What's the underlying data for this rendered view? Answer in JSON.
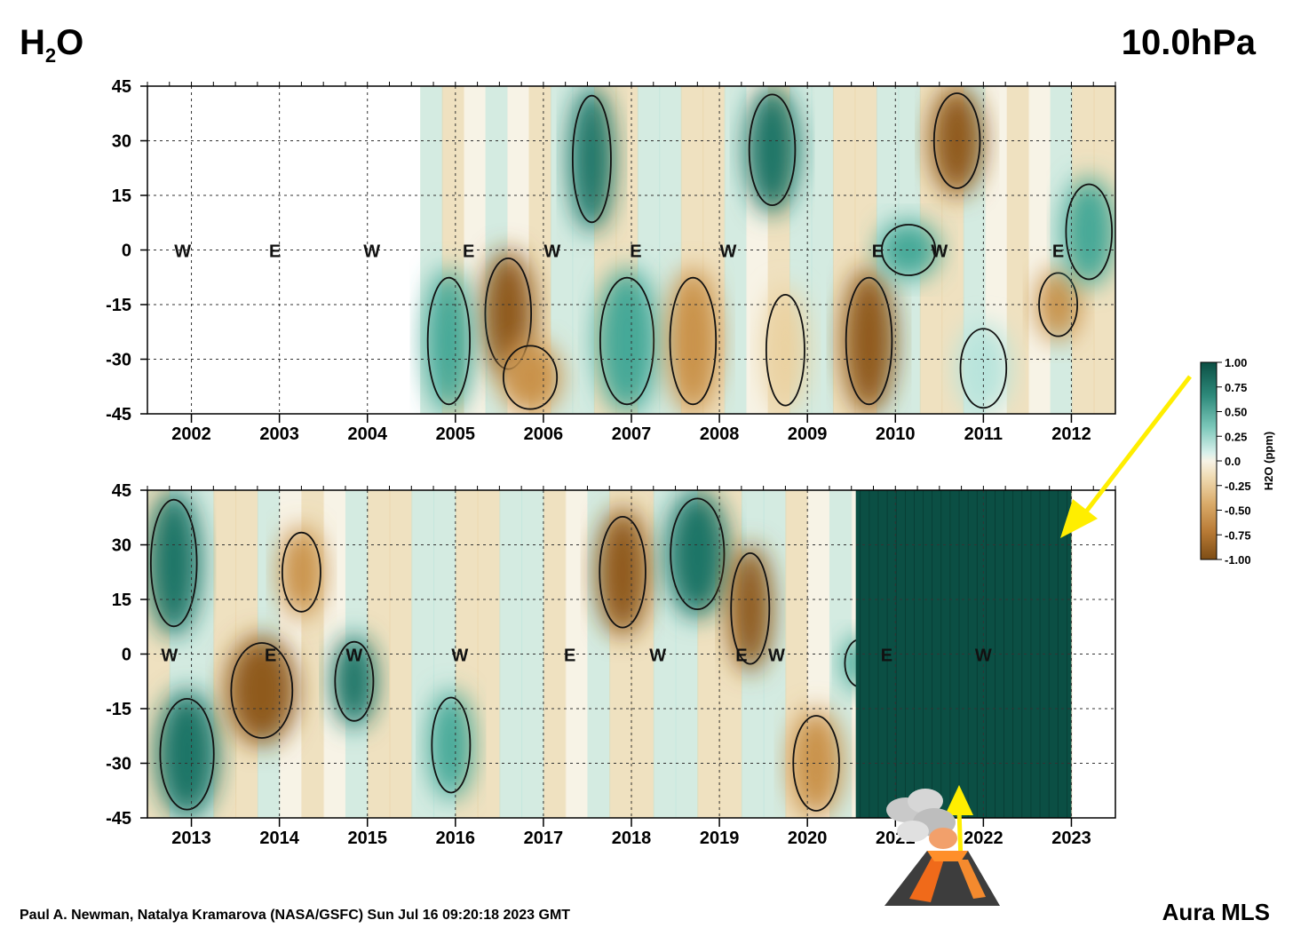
{
  "header": {
    "title_prefix": "H",
    "title_sub": "2",
    "title_suffix": "O",
    "pressure_level": "10.0hPa"
  },
  "footer": {
    "credit": "Paul A. Newman, Natalya Kramarova (NASA/GSFC) Sun Jul 16 09:20:18 2023 GMT",
    "instrument": "Aura MLS"
  },
  "chart_data": [
    {
      "type": "heatmap",
      "panel": "top",
      "title": "H2O 10.0hPa",
      "x": [
        "2002",
        "2003",
        "2004",
        "2005",
        "2006",
        "2007",
        "2008",
        "2009",
        "2010",
        "2011",
        "2012"
      ],
      "xlim": [
        2001.5,
        2012.5
      ],
      "ylim": [
        -45,
        45
      ],
      "yticks": [
        "45",
        "30",
        "15",
        "0",
        "-15",
        "-30",
        "-45"
      ],
      "data_start": 2004.6,
      "data_end": 2012.5,
      "qbo_labels": [
        {
          "phase": "W",
          "x": 2001.9
        },
        {
          "phase": "E",
          "x": 2002.95
        },
        {
          "phase": "W",
          "x": 2004.05
        },
        {
          "phase": "E",
          "x": 2005.15
        },
        {
          "phase": "W",
          "x": 2006.1
        },
        {
          "phase": "E",
          "x": 2007.05
        },
        {
          "phase": "W",
          "x": 2008.1
        },
        {
          "phase": "E",
          "x": 2009.8
        },
        {
          "phase": "W",
          "x": 2010.5
        },
        {
          "phase": "E",
          "x": 2011.85
        }
      ],
      "anomaly_regions": [
        {
          "t0": 2005.3,
          "t1": 2005.9,
          "lat0": -35,
          "lat1": 0,
          "value": -0.85
        },
        {
          "t0": 2005.5,
          "t1": 2006.2,
          "lat0": -45,
          "lat1": -25,
          "value": -0.45
        },
        {
          "t0": 2004.65,
          "t1": 2005.2,
          "lat0": -45,
          "lat1": -5,
          "value": 0.35
        },
        {
          "t0": 2006.3,
          "t1": 2006.8,
          "lat0": 5,
          "lat1": 45,
          "value": 0.8
        },
        {
          "t0": 2006.6,
          "t1": 2007.3,
          "lat0": -45,
          "lat1": -5,
          "value": 0.4
        },
        {
          "t0": 2007.4,
          "t1": 2008.0,
          "lat0": -45,
          "lat1": -5,
          "value": -0.55
        },
        {
          "t0": 2008.3,
          "t1": 2008.9,
          "lat0": 10,
          "lat1": 45,
          "value": 0.85
        },
        {
          "t0": 2008.5,
          "t1": 2009.0,
          "lat0": -45,
          "lat1": -10,
          "value": -0.3
        },
        {
          "t0": 2009.4,
          "t1": 2010.0,
          "lat0": -45,
          "lat1": -5,
          "value": -0.7
        },
        {
          "t0": 2009.8,
          "t1": 2010.5,
          "lat0": -8,
          "lat1": 8,
          "value": 0.5
        },
        {
          "t0": 2010.4,
          "t1": 2011.0,
          "lat0": 15,
          "lat1": 45,
          "value": -0.6
        },
        {
          "t0": 2010.7,
          "t1": 2011.3,
          "lat0": -45,
          "lat1": -20,
          "value": 0.3
        },
        {
          "t0": 2011.6,
          "t1": 2012.1,
          "lat0": -25,
          "lat1": -5,
          "value": -0.45
        },
        {
          "t0": 2011.9,
          "t1": 2012.5,
          "lat0": -10,
          "lat1": 20,
          "value": 0.55
        }
      ],
      "colorbar": {
        "label": "H2O (ppm)",
        "ticks": [
          "1.00",
          "0.75",
          "0.50",
          "0.25",
          "0.0",
          "-0.25",
          "-0.50",
          "-0.75",
          "-1.00"
        ],
        "range": [
          -1.0,
          1.0
        ]
      }
    },
    {
      "type": "heatmap",
      "panel": "bottom",
      "title": "H2O 10.0hPa",
      "x": [
        "2013",
        "2014",
        "2015",
        "2016",
        "2017",
        "2018",
        "2019",
        "2020",
        "2021",
        "2022",
        "2023"
      ],
      "xlim": [
        2012.5,
        2023.5
      ],
      "ylim": [
        -45,
        45
      ],
      "yticks": [
        "45",
        "30",
        "15",
        "0",
        "-15",
        "-30",
        "-45"
      ],
      "data_start": 2012.5,
      "data_end": 2023.0,
      "qbo_labels": [
        {
          "phase": "W",
          "x": 2012.75
        },
        {
          "phase": "E",
          "x": 2013.9
        },
        {
          "phase": "W",
          "x": 2014.85
        },
        {
          "phase": "W",
          "x": 2016.05
        },
        {
          "phase": "E",
          "x": 2017.3
        },
        {
          "phase": "W",
          "x": 2018.3
        },
        {
          "phase": "E",
          "x": 2019.25
        },
        {
          "phase": "W",
          "x": 2019.65
        },
        {
          "phase": "E",
          "x": 2020.9
        },
        {
          "phase": "W",
          "x": 2022.0
        }
      ],
      "anomaly_regions": [
        {
          "t0": 2012.5,
          "t1": 2013.1,
          "lat0": 5,
          "lat1": 45,
          "value": 0.75
        },
        {
          "t0": 2012.6,
          "t1": 2013.3,
          "lat0": -45,
          "lat1": -10,
          "value": 0.6
        },
        {
          "t0": 2013.4,
          "t1": 2014.2,
          "lat0": -25,
          "lat1": 5,
          "value": -0.7
        },
        {
          "t0": 2014.0,
          "t1": 2014.5,
          "lat0": 10,
          "lat1": 35,
          "value": -0.45
        },
        {
          "t0": 2014.6,
          "t1": 2015.1,
          "lat0": -20,
          "lat1": 5,
          "value": 0.6
        },
        {
          "t0": 2015.7,
          "t1": 2016.2,
          "lat0": -40,
          "lat1": -10,
          "value": 0.55
        },
        {
          "t0": 2017.6,
          "t1": 2018.2,
          "lat0": 5,
          "lat1": 40,
          "value": -0.7
        },
        {
          "t0": 2018.4,
          "t1": 2019.1,
          "lat0": 10,
          "lat1": 45,
          "value": 0.7
        },
        {
          "t0": 2019.1,
          "t1": 2019.6,
          "lat0": -5,
          "lat1": 30,
          "value": -0.65
        },
        {
          "t0": 2019.8,
          "t1": 2020.4,
          "lat0": -45,
          "lat1": -15,
          "value": -0.35
        },
        {
          "t0": 2020.4,
          "t1": 2020.8,
          "lat0": -10,
          "lat1": 5,
          "value": 0.5
        },
        {
          "t0": 2020.55,
          "t1": 2023.0,
          "lat0": -45,
          "lat1": 45,
          "value": 1.3
        }
      ],
      "colorbar": {
        "label": "H2O (ppm)",
        "ticks": [
          "1.00",
          "0.75",
          "0.50",
          "0.25",
          "0.0",
          "-0.25",
          "-0.50",
          "-0.75",
          "-1.00"
        ],
        "range": [
          -1.0,
          1.0
        ]
      }
    }
  ],
  "palette": {
    "pos_strong": "#0b4f44",
    "pos_mid": "#45a897",
    "pos_light": "#b8e4dc",
    "neutral": "#f7f3e6",
    "neg_light": "#ead1a0",
    "neg_mid": "#c9924a",
    "neg_strong": "#8f5a1e",
    "arrow": "#ffee00",
    "frame": "#000000"
  },
  "annotations": {
    "arrow_icon": "yellow-arrow",
    "volcano_icon": "volcano-eruption-icon"
  }
}
